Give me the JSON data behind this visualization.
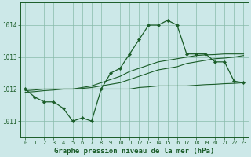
{
  "x": [
    0,
    1,
    2,
    3,
    4,
    5,
    6,
    7,
    8,
    9,
    10,
    11,
    12,
    13,
    14,
    15,
    16,
    17,
    18,
    19,
    20,
    21,
    22,
    23
  ],
  "line_main": [
    1012.0,
    1011.75,
    1011.6,
    1011.6,
    1011.4,
    1011.0,
    1011.1,
    1011.0,
    1012.0,
    1012.5,
    1012.65,
    1013.1,
    1013.55,
    1014.0,
    1014.0,
    1014.15,
    1014.0,
    1013.1,
    1013.1,
    1013.1,
    1012.85,
    1012.85,
    1012.25,
    1012.2
  ],
  "line_flat1": [
    1012.0,
    1012.0,
    1012.0,
    1012.0,
    1012.0,
    1012.0,
    1012.0,
    1012.0,
    1012.0,
    1012.0,
    1012.0,
    1012.0,
    1012.05,
    1012.07,
    1012.1,
    1012.1,
    1012.1,
    1012.1,
    1012.12,
    1012.14,
    1012.15,
    1012.17,
    1012.18,
    1012.2
  ],
  "line_flat2": [
    1011.95,
    1011.97,
    1012.0,
    1012.0,
    1012.0,
    1012.0,
    1012.02,
    1012.05,
    1012.1,
    1012.15,
    1012.2,
    1012.3,
    1012.4,
    1012.5,
    1012.6,
    1012.65,
    1012.7,
    1012.8,
    1012.85,
    1012.9,
    1012.95,
    1012.97,
    1013.0,
    1013.05
  ],
  "line_flat3": [
    1011.9,
    1011.92,
    1011.95,
    1011.97,
    1012.0,
    1012.0,
    1012.05,
    1012.1,
    1012.2,
    1012.3,
    1012.4,
    1012.55,
    1012.65,
    1012.75,
    1012.85,
    1012.9,
    1012.95,
    1013.0,
    1013.05,
    1013.07,
    1013.08,
    1013.1,
    1013.1,
    1013.1
  ],
  "background_color": "#cce8e8",
  "grid_color": "#88bbaa",
  "line_color": "#1a5c28",
  "title": "Graphe pression niveau de la mer (hPa)",
  "ylim": [
    1010.5,
    1014.7
  ],
  "yticks": [
    1011,
    1012,
    1013,
    1014
  ],
  "xticks": [
    0,
    1,
    2,
    3,
    4,
    5,
    6,
    7,
    8,
    9,
    10,
    11,
    12,
    13,
    14,
    15,
    16,
    17,
    18,
    19,
    20,
    21,
    22,
    23
  ]
}
